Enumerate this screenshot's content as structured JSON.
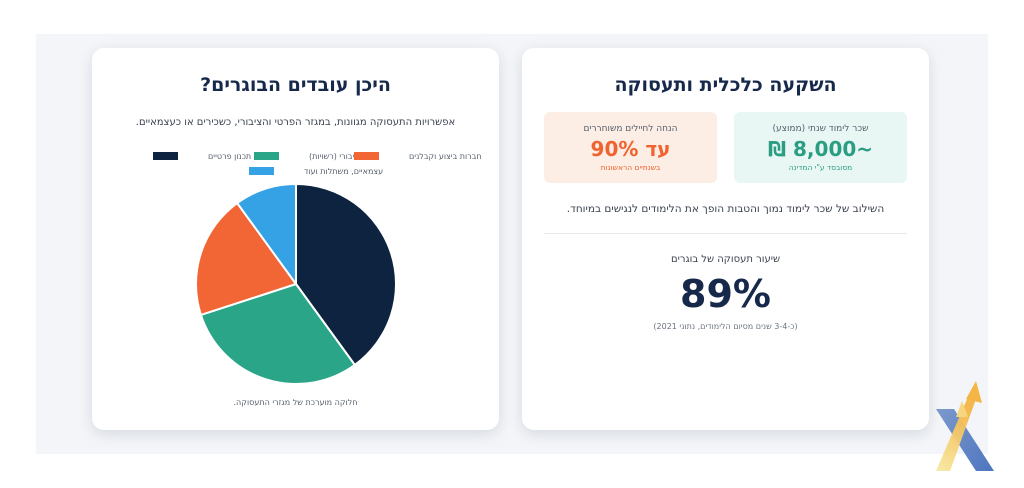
{
  "investment": {
    "title": "השקעה כלכלית ותעסוקה",
    "salary": {
      "label": "שכר לימוד שנתי (ממוצע)",
      "value": "~8,000 ₪",
      "note": "מסובסד ע\"י המדינה"
    },
    "discount": {
      "label": "הנחה לחיילים משוחררים",
      "value": "עד 90%",
      "note": "בשנתיים הראשונות"
    },
    "description": "השילוב של שכר לימוד נמוך והטבות הופך את הלימודים לנגישים במיוחד.",
    "employment": {
      "label": "שיעור תעסוקה של בוגרים",
      "value": "89%",
      "note": "(כ-3-4 שנים מסיום הלימודים, נתוני 2021)"
    }
  },
  "employers": {
    "title": "היכן עובדים הבוגרים?",
    "subtitle": "אפשרויות התעסוקה מגוונות, במגזר הפרטי והציבורי, כשכירים או כעצמאיים.",
    "caption": "חלוקה מוערכת של מגזרי התעסוקה."
  },
  "chart_data": {
    "type": "pie",
    "categories": [
      "משרדי תכנון פרטיים",
      "מגזר ציבורי (רשויות)",
      "חברות ביצוע וקבלנים",
      "עצמאיים, משתלות ועוד"
    ],
    "values": [
      40,
      30,
      20,
      10
    ],
    "colors": [
      "#0e2340",
      "#2ba588",
      "#f26535",
      "#36a2e6"
    ],
    "legend_placement": "top"
  },
  "colors": {
    "navy": "#16294b",
    "teal": "#2a9d83",
    "orange": "#f0622f"
  }
}
